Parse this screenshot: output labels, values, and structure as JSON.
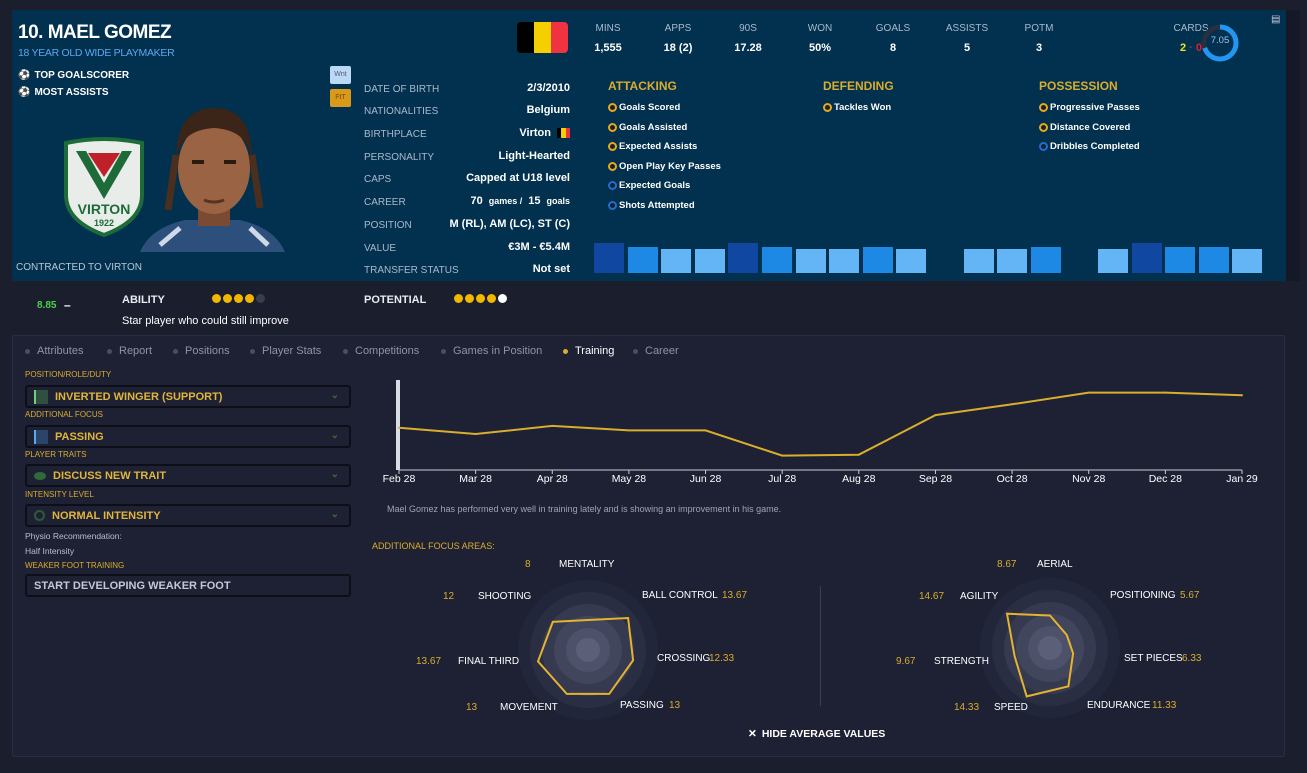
{
  "player": {
    "name": "10. MAEL GOMEZ",
    "subtitle": "18 YEAR OLD WIDE PLAYMAKER",
    "awards": [
      {
        "icon": "ball-icon",
        "label": "TOP GOALSCORER"
      },
      {
        "icon": "assist-icon",
        "label": "MOST ASSISTS"
      }
    ],
    "contract": "CONTRACTED TO VIRTON",
    "club_crest_text": "VIRTON",
    "club_crest_year": "1922",
    "badges": [
      "Wnt",
      "FtT"
    ],
    "flag_colors": [
      "#000000",
      "#f5d000",
      "#ef3340"
    ]
  },
  "details": [
    {
      "label": "DATE OF BIRTH",
      "value": "2/3/2010"
    },
    {
      "label": "NATIONALITIES",
      "value": "Belgium"
    },
    {
      "label": "BIRTHPLACE",
      "value": "Virton"
    },
    {
      "label": "PERSONALITY",
      "value": "Light-Hearted"
    },
    {
      "label": "CAPS",
      "value": "Capped at U18 level"
    },
    {
      "label": "CAREER",
      "games": "70",
      "games_unit": "games /",
      "goals": "15",
      "goals_unit": "goals"
    },
    {
      "label": "POSITION",
      "value": "M (RL), AM (LC), ST (C)"
    },
    {
      "label": "VALUE",
      "value": "€3M - €5.4M"
    },
    {
      "label": "TRANSFER STATUS",
      "value": "Not set"
    }
  ],
  "stats": [
    {
      "label": "MINS",
      "value": "1,555"
    },
    {
      "label": "APPS",
      "value": "18 (2)"
    },
    {
      "label": "90S",
      "value": "17.28"
    },
    {
      "label": "WON",
      "value": "50%"
    },
    {
      "label": "GOALS",
      "value": "8"
    },
    {
      "label": "ASSISTS",
      "value": "5"
    },
    {
      "label": "POTM",
      "value": "3"
    }
  ],
  "cards": {
    "label": "CARDS",
    "yellow": "2",
    "red": "0"
  },
  "avg_rating": {
    "value": "7.05",
    "fill_fraction": 0.7
  },
  "categories": [
    {
      "title": "ATTACKING",
      "items": [
        {
          "label": "Goals Scored",
          "tier": "gold"
        },
        {
          "label": "Goals Assisted",
          "tier": "gold"
        },
        {
          "label": "Expected Assists",
          "tier": "gold"
        },
        {
          "label": "Open Play Key Passes",
          "tier": "gold"
        },
        {
          "label": "Expected Goals",
          "tier": "blue"
        },
        {
          "label": "Shots Attempted",
          "tier": "blue"
        }
      ]
    },
    {
      "title": "DEFENDING",
      "items": [
        {
          "label": "Tackles Won",
          "tier": "gold"
        }
      ]
    },
    {
      "title": "POSSESSION",
      "items": [
        {
          "label": "Progressive Passes",
          "tier": "gold"
        },
        {
          "label": "Distance Covered",
          "tier": "gold"
        },
        {
          "label": "Dribbles Completed",
          "tier": "blue"
        }
      ]
    }
  ],
  "form_bars": {
    "colors": {
      "high": "#0f47a1",
      "mid": "#1e88e5",
      "low": "#64b5f6"
    },
    "groups": [
      [
        "high",
        "mid",
        "low",
        "low",
        "high",
        "mid",
        "low",
        "low",
        "mid",
        "low"
      ],
      [
        "low",
        "low",
        "mid"
      ],
      [
        "low",
        "high",
        "mid",
        "mid",
        "low"
      ]
    ]
  },
  "ability": {
    "rating": "8.85",
    "trend": "–",
    "label": "ABILITY",
    "stars": 4,
    "potential_label": "POTENTIAL",
    "potential_stars": 5,
    "description": "Star player who could still improve"
  },
  "tabs": [
    {
      "label": "Attributes"
    },
    {
      "label": "Report"
    },
    {
      "label": "Positions"
    },
    {
      "label": "Player Stats"
    },
    {
      "label": "Competitions"
    },
    {
      "label": "Games in Position"
    },
    {
      "label": "Training",
      "active": true
    },
    {
      "label": "Career"
    }
  ],
  "training": {
    "role_label": "POSITION/ROLE/DUTY",
    "role": "INVERTED WINGER (SUPPORT)",
    "focus_label": "ADDITIONAL FOCUS",
    "focus": "PASSING",
    "traits_label": "PLAYER TRAITS",
    "traits": "DISCUSS NEW TRAIT",
    "intensity_label": "INTENSITY LEVEL",
    "intensity": "NORMAL INTENSITY",
    "physio_label": "Physio Recommendation:",
    "physio": "Half Intensity",
    "weak_foot_label": "WEAKER FOOT TRAINING",
    "weak_foot": "START DEVELOPING WEAKER FOOT",
    "comment": "Mael Gomez has performed very well in training lately and is showing an improvement in his game.",
    "focus_areas_label": "ADDITIONAL FOCUS AREAS:",
    "hide_avg": "HIDE AVERAGE VALUES"
  },
  "chart_data": [
    {
      "type": "line",
      "title": "",
      "x": [
        "Feb 28",
        "Mar 28",
        "Apr 28",
        "May 28",
        "Jun 28",
        "Jul 28",
        "Aug 28",
        "Sep 28",
        "Oct 28",
        "Nov 28",
        "Dec 28",
        "Jan 29"
      ],
      "values": [
        47,
        40,
        49,
        44,
        44,
        16,
        17,
        61,
        73,
        86,
        86,
        83
      ],
      "ylim": [
        0,
        100
      ],
      "color": "#d9ad2d",
      "grid": false
    },
    {
      "type": "radar",
      "axes": [
        "MENTALITY",
        "BALL CONTROL",
        "CROSSING",
        "PASSING",
        "MOVEMENT",
        "FINAL THIRD",
        "SHOOTING"
      ],
      "values": [
        "8",
        "13.67",
        "12.33",
        "13",
        "13",
        "13.67",
        "12"
      ],
      "rmax": 20
    },
    {
      "type": "radar",
      "axes": [
        "AERIAL",
        "POSITIONING",
        "SET PIECES",
        "ENDURANCE",
        "SPEED",
        "STRENGTH",
        "AGILITY"
      ],
      "values": [
        "8.67",
        "5.67",
        "6.33",
        "11.33",
        "14.33",
        "9.67",
        "14.67"
      ],
      "rmax": 20
    }
  ]
}
